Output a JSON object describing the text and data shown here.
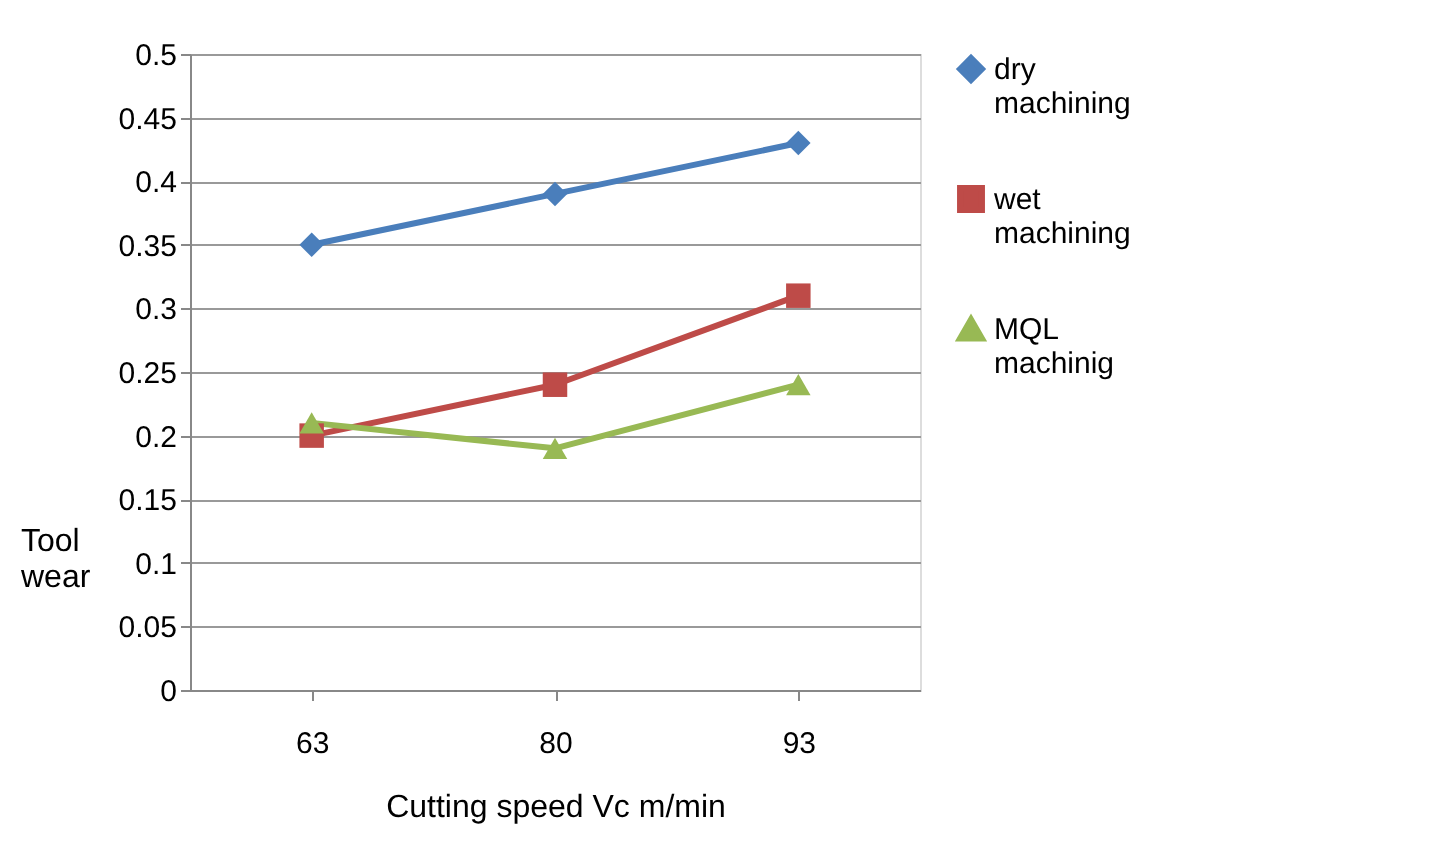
{
  "chart_data": {
    "type": "line",
    "xlabel": "Cutting speed  Vc m/min",
    "ylabel": "Tool wear",
    "categories": [
      "63",
      "80",
      "93"
    ],
    "series": [
      {
        "name": "dry machining",
        "color": "#4a7ebb",
        "marker": "diamond",
        "values": [
          0.35,
          0.39,
          0.43
        ]
      },
      {
        "name": "wet machining",
        "color": "#be4b48",
        "marker": "square",
        "values": [
          0.2,
          0.24,
          0.31
        ]
      },
      {
        "name": "MQL machinig",
        "color": "#98b954",
        "marker": "triangle",
        "values": [
          0.21,
          0.19,
          0.24
        ]
      }
    ],
    "ylim": [
      0,
      0.5
    ],
    "yticks": [
      0,
      0.05,
      0.1,
      0.15,
      0.2,
      0.25,
      0.3,
      0.35,
      0.4,
      0.45,
      0.5
    ],
    "grid": "y",
    "legend": "right",
    "line_style": "solid"
  }
}
